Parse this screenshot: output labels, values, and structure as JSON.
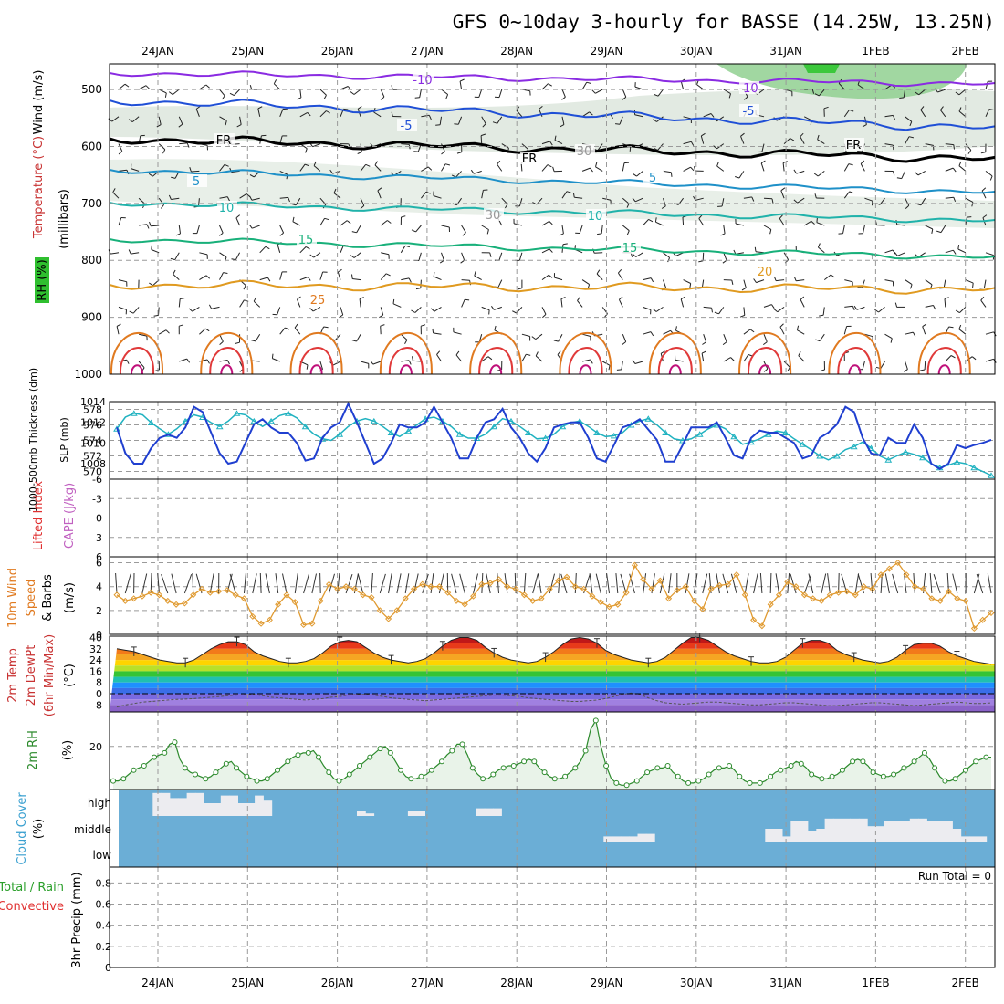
{
  "title": "GFS 0~10day 3-hourly for BASSE (14.25W, 13.25N)",
  "dates": [
    "24JAN",
    "25JAN",
    "26JAN",
    "27JAN",
    "28JAN",
    "29JAN",
    "30JAN",
    "31JAN",
    "1FEB",
    "2FEB"
  ],
  "run_total_label": "Run Total = 0",
  "panels": {
    "upper_air": {
      "ylabel": "(millibars)",
      "side_labels": [
        "Wind (m/s)",
        "Temperature (°C)",
        "RH (%)"
      ],
      "side_label_colors": [
        "#000000",
        "#c83232",
        "#2c8a2c"
      ],
      "yticks": [
        500,
        600,
        700,
        800,
        900,
        1000
      ],
      "contour_labels": [
        {
          "text": "-10",
          "color": "#8a2be2"
        },
        {
          "text": "-5",
          "color": "#1f4fd6"
        },
        {
          "text": "5",
          "color": "#1e90c8"
        },
        {
          "text": "10",
          "color": "#20b2aa"
        },
        {
          "text": "15",
          "color": "#18b07a"
        },
        {
          "text": "20",
          "color": "#e09a20"
        },
        {
          "text": "25",
          "color": "#e07a20"
        },
        {
          "text": "FR",
          "color": "#000000"
        },
        {
          "text": "30",
          "color": "#999999"
        }
      ]
    },
    "thickness_slp": {
      "left_label": "1000-500mb Thickness (dm)",
      "right_label": "SLP (mb)",
      "left_color": "#20b2c0",
      "right_color": "#1f3fd0",
      "left_ticks": [
        570,
        572,
        574,
        576,
        578
      ],
      "right_ticks": [
        1008,
        1010,
        1012,
        1014
      ]
    },
    "cape_li": {
      "left_label": "Lifted Index",
      "right_label": "CAPE (J/kg)",
      "left_color": "#e03030",
      "right_color": "#c060c0",
      "yticks": [
        "-6",
        "-3",
        "0",
        "3",
        "6"
      ]
    },
    "wind10m": {
      "labels": [
        "10m Wind",
        "Speed",
        "& Barbs",
        "(m/s)"
      ],
      "label_colors": [
        "#e07a20",
        "#e07a20",
        "#000000",
        "#000000"
      ],
      "yticks": [
        0,
        2,
        4,
        6
      ],
      "color": "#e09a30"
    },
    "temp2m": {
      "labels": [
        "2m Temp",
        "2m DewPt",
        "(6hr Min/Max)",
        "(°C)"
      ],
      "yticks": [
        "40",
        "32",
        "24",
        "16",
        "8",
        "0",
        "-8"
      ]
    },
    "rh2m": {
      "labels": [
        "2m RH",
        "(%)"
      ],
      "label_color": "#2c8a2c",
      "yticks": [
        20
      ]
    },
    "cloud": {
      "labels": [
        "Cloud Cover",
        "(%)"
      ],
      "label_color": "#3aa0d0",
      "levels": [
        "high",
        "middle",
        "low"
      ]
    },
    "precip": {
      "labels": [
        "Total / Rain",
        "Convective",
        "3hr Precip (mm)"
      ],
      "label_colors": [
        "#2ca02c",
        "#e03030",
        "#000000"
      ],
      "yticks": [
        "0",
        "0.2",
        "0.4",
        "0.6",
        "0.8"
      ]
    }
  },
  "chart_data": [
    {
      "type": "line",
      "name": "thickness-slp",
      "series": [
        {
          "name": "1000-500mb Thickness (dm)",
          "unit": "dm",
          "values": [
            575.5,
            577.0,
            577.5,
            577.3,
            576.3,
            575.5,
            574.8,
            575.5,
            576.5,
            577.3,
            577.0,
            576.3,
            575.8,
            576.5,
            577.5,
            577.3,
            576.5,
            575.8,
            576.5,
            577.2,
            577.5,
            576.9,
            575.8,
            574.8,
            574.2,
            574.0,
            574.8,
            575.8,
            576.5,
            576.8,
            576.5,
            575.8,
            575.0,
            574.5,
            575.2,
            576.0,
            576.8,
            577.0,
            576.5,
            575.8,
            574.8,
            574.3,
            574.3,
            574.8,
            575.8,
            576.8,
            576.5,
            575.8,
            575.0,
            574.2,
            574.3,
            574.8,
            575.8,
            576.3,
            576.5,
            575.8,
            575.0,
            574.5,
            574.6,
            575.0,
            576.0,
            576.5,
            576.8,
            576.0,
            575.0,
            574.2,
            574.0,
            574.2,
            574.8,
            575.5,
            576.0,
            575.5,
            574.5,
            573.5,
            573.8,
            574.2,
            574.8,
            575.2,
            575.0,
            574.2,
            573.5,
            572.8,
            572.0,
            571.5,
            572.0,
            572.8,
            573.2,
            573.8,
            573.0,
            572.0,
            571.5,
            572.0,
            572.5,
            572.2,
            571.8,
            571.0,
            570.5,
            570.8,
            571.2,
            571.0,
            570.5,
            570.0,
            569.5
          ]
        },
        {
          "name": "SLP (mb)",
          "unit": "mb",
          "values": [
            1011.5,
            1009.0,
            1008.0,
            1008.0,
            1009.5,
            1010.5,
            1010.8,
            1010.5,
            1011.5,
            1013.5,
            1013.0,
            1011.0,
            1009.0,
            1008.0,
            1008.2,
            1010.0,
            1011.8,
            1012.3,
            1011.5,
            1011.0,
            1011.0,
            1010.0,
            1008.3,
            1008.5,
            1010.5,
            1011.5,
            1012.0,
            1013.8,
            1012.0,
            1010.0,
            1008.0,
            1008.5,
            1010.0,
            1011.8,
            1011.5,
            1011.5,
            1012.0,
            1013.5,
            1012.0,
            1010.5,
            1008.5,
            1008.5,
            1010.5,
            1012.0,
            1012.3,
            1013.3,
            1011.5,
            1010.5,
            1009.0,
            1008.2,
            1009.5,
            1011.5,
            1011.8,
            1012.0,
            1012.0,
            1010.5,
            1008.5,
            1008.2,
            1009.8,
            1011.5,
            1011.8,
            1012.3,
            1011.3,
            1010.3,
            1008.2,
            1008.2,
            1009.8,
            1011.5,
            1011.5,
            1011.5,
            1012.0,
            1010.5,
            1008.8,
            1008.5,
            1010.5,
            1011.2,
            1011.0,
            1011.0,
            1010.5,
            1010.0,
            1008.5,
            1008.8,
            1010.5,
            1011.0,
            1011.8,
            1013.5,
            1013.0,
            1010.5,
            1009.0,
            1008.8,
            1010.5,
            1010.0,
            1010.0,
            1011.8,
            1010.5,
            1008.0,
            1007.5,
            1008.0,
            1009.8,
            1009.5,
            1009.8,
            1010.0,
            1010.3
          ]
        }
      ],
      "ylim_left": [
        569,
        579
      ],
      "ylim_right": [
        1006.5,
        1014
      ]
    },
    {
      "type": "line",
      "name": "10m wind speed",
      "unit": "m/s",
      "values": [
        3.3,
        2.8,
        3.0,
        3.2,
        3.5,
        3.3,
        2.8,
        2.5,
        2.6,
        3.3,
        3.8,
        3.5,
        3.6,
        3.7,
        3.3,
        3.0,
        1.5,
        0.9,
        1.2,
        2.5,
        3.3,
        2.7,
        0.8,
        0.9,
        2.8,
        4.2,
        3.8,
        4.0,
        3.8,
        3.3,
        3.1,
        2.0,
        1.3,
        2.0,
        3.0,
        3.8,
        4.2,
        4.0,
        4.0,
        3.5,
        2.8,
        2.5,
        3.2,
        4.2,
        4.3,
        4.6,
        4.0,
        3.8,
        3.3,
        2.8,
        3.0,
        3.8,
        4.5,
        4.8,
        4.0,
        3.8,
        3.2,
        2.7,
        2.3,
        2.5,
        3.5,
        5.8,
        4.6,
        3.8,
        4.5,
        3.0,
        3.7,
        4.0,
        2.8,
        2.1,
        3.8,
        4.1,
        4.2,
        5.0,
        3.3,
        1.2,
        0.7,
        2.5,
        3.3,
        4.4,
        4.0,
        3.3,
        3.0,
        2.8,
        3.3,
        3.5,
        3.6,
        3.3,
        4.0,
        3.8,
        5.0,
        5.5,
        6.0,
        5.0,
        4.0,
        3.8,
        3.0,
        2.8,
        3.6,
        3.0,
        2.8,
        0.5,
        1.2,
        1.8
      ],
      "ylim": [
        0,
        6.5
      ]
    },
    {
      "type": "area",
      "name": "2m temp",
      "unit": "°C",
      "values": [
        32,
        31,
        30,
        28,
        26,
        24,
        23,
        22,
        22,
        24,
        28,
        32,
        35,
        37,
        37,
        35,
        30,
        27,
        25,
        23,
        22,
        22,
        23,
        25,
        29,
        34,
        37,
        38,
        37,
        33,
        29,
        26,
        24,
        23,
        22,
        23,
        25,
        29,
        34,
        38,
        40,
        40,
        38,
        33,
        29,
        26,
        24,
        23,
        22,
        23,
        26,
        30,
        35,
        39,
        40,
        39,
        36,
        31,
        28,
        26,
        24,
        23,
        22,
        23,
        26,
        31,
        36,
        40,
        40,
        38,
        34,
        30,
        27,
        25,
        23,
        22,
        22,
        23,
        26,
        31,
        36,
        38,
        38,
        36,
        31,
        28,
        26,
        24,
        23,
        22,
        23,
        26,
        31,
        35,
        36,
        36,
        34,
        30,
        27,
        25,
        23,
        22,
        21
      ],
      "ylim": [
        -13,
        41
      ]
    },
    {
      "type": "line",
      "name": "2m dewpoint",
      "unit": "°C",
      "values": [
        -9.5,
        -8.0,
        -7.0,
        -6.0,
        -5.5,
        -5.0,
        -4.5,
        -4.0,
        -3.8,
        -3.5,
        -3.0,
        -2.5,
        -2.0,
        -1.5,
        -1.0,
        -0.8,
        -0.5,
        -1.5,
        -2.5,
        -3.0,
        -3.5,
        -4.0,
        -4.5,
        -4.0,
        -3.5,
        -2.5,
        -2.0,
        -1.0,
        -0.5,
        -0.5,
        -1.0,
        -2.0,
        -3.0,
        -3.5,
        -4.0,
        -4.5,
        -5.0,
        -4.5,
        -4.0,
        -3.5,
        -3.0,
        -2.5,
        -2.0,
        -1.5,
        -1.0,
        -1.0,
        -1.5,
        -2.0,
        -3.0,
        -3.5,
        -4.0,
        -4.5,
        -5.0,
        -5.5,
        -5.5,
        -5.0,
        -4.5,
        -3.5,
        -2.0,
        -0.5,
        0.5,
        -0.5,
        -3.0,
        -5.0,
        -6.5,
        -7.0,
        -7.5,
        -7.0,
        -6.5,
        -6.0,
        -6.0,
        -6.5,
        -7.0,
        -7.5,
        -8.0,
        -8.0,
        -7.5,
        -7.0,
        -6.5,
        -6.5,
        -7.0,
        -7.5,
        -8.0,
        -8.5,
        -8.5,
        -8.0,
        -7.5,
        -7.0,
        -6.5,
        -6.5,
        -7.0,
        -7.5,
        -8.0,
        -8.5,
        -8.0,
        -7.5,
        -7.0,
        -6.5,
        -6.0,
        -6.5,
        -7.0,
        -7.0,
        -6.5
      ]
    },
    {
      "type": "area",
      "name": "2m RH",
      "unit": "%",
      "values": [
        4,
        4,
        5,
        7,
        9,
        10,
        11,
        13,
        15,
        16,
        17,
        21,
        22,
        14,
        10,
        8,
        7,
        6,
        5,
        6,
        8,
        10,
        12,
        13,
        10,
        8,
        6,
        5,
        4,
        4,
        5,
        7,
        9,
        11,
        13,
        15,
        16,
        17,
        17,
        18,
        15,
        11,
        8,
        5,
        4,
        5,
        7,
        9,
        11,
        13,
        15,
        17,
        19,
        20,
        17,
        13,
        9,
        6,
        5,
        5,
        6,
        7,
        9,
        11,
        13,
        16,
        18,
        21,
        21,
        16,
        10,
        7,
        5,
        5,
        7,
        9,
        10,
        11,
        11,
        12,
        13,
        14,
        13,
        10,
        8,
        6,
        5,
        5,
        6,
        8,
        10,
        13,
        18,
        28,
        32,
        20,
        11,
        5,
        3,
        2,
        2,
        3,
        4,
        6,
        8,
        9,
        10,
        10,
        11,
        8,
        6,
        4,
        3,
        3,
        4,
        5,
        7,
        9,
        10,
        10,
        11,
        9,
        6,
        4,
        3,
        3,
        3,
        4,
        6,
        8,
        9,
        10,
        11,
        13,
        12,
        10,
        7,
        6,
        5,
        5,
        6,
        7,
        9,
        11,
        13,
        14,
        13,
        11,
        8,
        7,
        6,
        6,
        7,
        8,
        10,
        11,
        13,
        15,
        17,
        14,
        10,
        6,
        4,
        4,
        5,
        7,
        9,
        11,
        13,
        14,
        15,
        15
      ],
      "ylim": [
        0,
        36
      ]
    },
    {
      "type": "heatmap",
      "name": "cloud cover",
      "levels": [
        "high",
        "middle",
        "low"
      ],
      "values": {
        "high": [
          0,
          0,
          0,
          0,
          45,
          45,
          35,
          35,
          45,
          45,
          25,
          25,
          40,
          40,
          25,
          25,
          40,
          30,
          0,
          0,
          0,
          0,
          0,
          0,
          0,
          0,
          0,
          0,
          10,
          5,
          0,
          0,
          0,
          0,
          10,
          10,
          0,
          0,
          0,
          0,
          0,
          0,
          15,
          15,
          15,
          0,
          0,
          0,
          0,
          0,
          0,
          0,
          0,
          0,
          0,
          0,
          0,
          0,
          0,
          0,
          0,
          0,
          0,
          0,
          0,
          0,
          0,
          0,
          0,
          0,
          0,
          0,
          0,
          0,
          0,
          0,
          0,
          0,
          0,
          0,
          0,
          0,
          0,
          0,
          0,
          0,
          0,
          0,
          0,
          0,
          0,
          0,
          0,
          0,
          0,
          0,
          0,
          0,
          0,
          0,
          0,
          0,
          0
        ],
        "middle": [
          0,
          0,
          0,
          0,
          0,
          0,
          0,
          0,
          0,
          0,
          0,
          0,
          0,
          0,
          0,
          0,
          0,
          0,
          0,
          0,
          0,
          0,
          0,
          0,
          0,
          0,
          0,
          0,
          0,
          0,
          0,
          0,
          0,
          0,
          0,
          0,
          0,
          0,
          0,
          0,
          0,
          0,
          0,
          0,
          0,
          0,
          0,
          0,
          0,
          0,
          0,
          0,
          0,
          0,
          0,
          0,
          0,
          10,
          10,
          10,
          10,
          15,
          15,
          0,
          0,
          0,
          0,
          0,
          0,
          0,
          0,
          0,
          0,
          0,
          0,
          0,
          25,
          25,
          10,
          40,
          40,
          20,
          25,
          45,
          45,
          45,
          45,
          45,
          30,
          30,
          40,
          40,
          40,
          45,
          45,
          40,
          40,
          40,
          25,
          10,
          10,
          10,
          0,
          0,
          0,
          0,
          0,
          0
        ],
        "low": [
          0,
          0,
          0,
          0,
          0,
          0,
          0,
          0,
          0,
          0,
          0,
          0,
          0,
          0,
          0,
          0,
          0,
          0,
          0,
          0,
          0,
          0,
          0,
          0,
          0,
          0,
          0,
          0,
          0,
          0,
          0,
          0,
          0,
          0,
          0,
          0,
          0,
          0,
          0,
          0,
          0,
          0,
          0,
          0,
          0,
          0,
          0,
          0,
          0,
          0,
          0,
          0,
          0,
          0,
          0,
          0,
          0,
          0,
          0,
          0,
          0,
          0,
          0,
          0,
          0,
          0,
          0,
          0,
          0,
          0,
          0,
          0,
          0,
          0,
          0,
          0,
          0,
          0,
          0,
          0,
          0,
          0,
          0,
          0,
          0,
          0,
          0,
          0,
          0,
          0,
          0,
          0,
          0,
          0,
          0,
          0,
          0,
          0,
          0,
          0,
          0,
          0,
          0
        ]
      }
    },
    {
      "type": "bar",
      "name": "3hr precip",
      "unit": "mm",
      "values": [],
      "ylim": [
        0,
        0.95
      ]
    }
  ]
}
